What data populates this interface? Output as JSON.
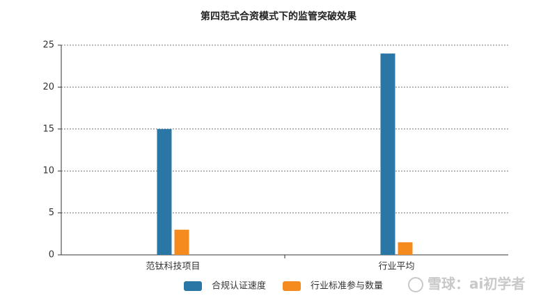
{
  "chart_data": {
    "type": "bar",
    "title": "第四范式合资模式下的监管突破效果",
    "categories": [
      "范钛科技项目",
      "行业平均"
    ],
    "series": [
      {
        "name": "合规认证速度",
        "color": "#2a77a6",
        "values": [
          15,
          24
        ]
      },
      {
        "name": "行业标准参与数量",
        "color": "#f58b1f",
        "values": [
          3,
          1.5
        ]
      }
    ],
    "ylim": [
      0,
      25
    ],
    "yticks": [
      0,
      5,
      10,
      15,
      20,
      25
    ],
    "grid": true,
    "legend": "bottom",
    "watermark": "雪球：ai初学者"
  }
}
